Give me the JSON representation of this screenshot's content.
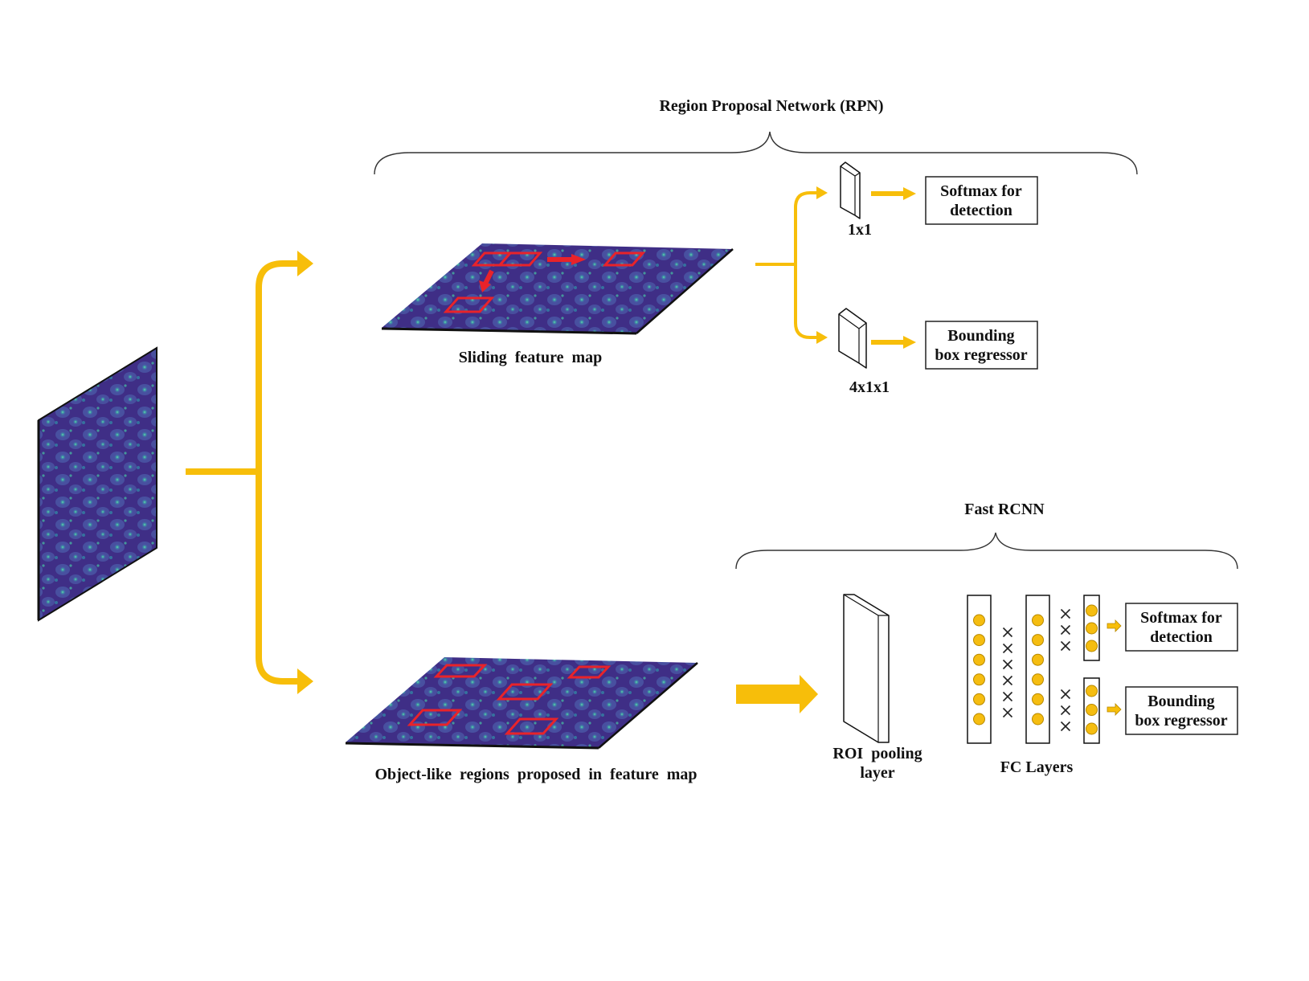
{
  "colors": {
    "arrow": "#F7BE0A",
    "region_box": "#E8232A",
    "feature_base": "#3F2E86",
    "feature_mid": "#4A64A8",
    "feature_spot": "#3FC8A8",
    "outline": "#111111"
  },
  "labels": {
    "rpn_title": "Region Proposal Network (RPN)",
    "fast_rcnn_title": "Fast RCNN",
    "sliding_map": "Sliding  feature  map",
    "object_map": "Object-like  regions  proposed  in  feature  map",
    "conv_1x1": "1x1",
    "conv_4x1x1": "4x1x1",
    "roi_line1": "ROI  pooling",
    "roi_line2": "layer",
    "fc_layers": "FC Layers"
  },
  "boxes": {
    "rpn_softmax": {
      "line1": "Softmax for",
      "line2": "detection"
    },
    "rpn_bbox": {
      "line1": "Bounding",
      "line2": "box regressor"
    },
    "frcnn_softmax": {
      "line1": "Softmax for",
      "line2": "detection"
    },
    "frcnn_bbox": {
      "line1": "Bounding",
      "line2": "box regressor"
    }
  },
  "fc_network": {
    "column1_nodes": 6,
    "column2_nodes": 6,
    "softmax_head_nodes": 3,
    "bbox_head_nodes": 3,
    "dropout_marks_1": 6,
    "dropout_marks_2a": 3,
    "dropout_marks_2b": 3
  }
}
